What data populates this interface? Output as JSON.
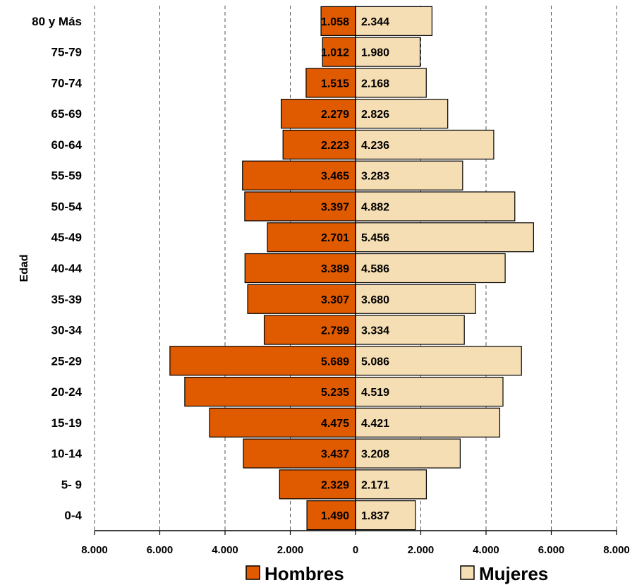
{
  "chart_data": {
    "type": "bar",
    "orientation": "horizontal-diverging",
    "ylabel": "Edad",
    "categories": [
      "80 y Más",
      "75-79",
      "70-74",
      "65-69",
      "60-64",
      "55-59",
      "50-54",
      "45-49",
      "40-44",
      "35-39",
      "30-34",
      "25-29",
      "20-24",
      "15-19",
      "10-14",
      "5- 9",
      "0-4"
    ],
    "series": [
      {
        "name": "Hombres",
        "color": "#E05A00",
        "values": [
          1058,
          1012,
          1515,
          2279,
          2223,
          3465,
          3397,
          2701,
          3389,
          3307,
          2799,
          5689,
          5235,
          4475,
          3437,
          2329,
          1490
        ],
        "value_labels": [
          "1.058",
          "1.012",
          "1.515",
          "2.279",
          "2.223",
          "3.465",
          "3.397",
          "2.701",
          "3.389",
          "3.307",
          "2.799",
          "5.689",
          "5.235",
          "4.475",
          "3.437",
          "2.329",
          "1.490"
        ]
      },
      {
        "name": "Mujeres",
        "color": "#F5DEB3",
        "values": [
          2344,
          1980,
          2168,
          2826,
          4236,
          3283,
          4882,
          5456,
          4586,
          3680,
          3334,
          5086,
          4519,
          4421,
          3208,
          2171,
          1837
        ],
        "value_labels": [
          "2.344",
          "1.980",
          "2.168",
          "2.826",
          "4.236",
          "3.283",
          "4.882",
          "5.456",
          "4.586",
          "3.680",
          "3.334",
          "5.086",
          "4.519",
          "4.421",
          "3.208",
          "2.171",
          "1.837"
        ]
      }
    ],
    "xlim": [
      -8000,
      8000
    ],
    "x_ticks": [
      -8000,
      -6000,
      -4000,
      -2000,
      0,
      2000,
      4000,
      6000,
      8000
    ],
    "x_tick_labels": [
      "8.000",
      "6.000",
      "4.000",
      "2.000",
      "0",
      "2.000",
      "4.000",
      "6.000",
      "8.000"
    ],
    "grid": "vertical-dashed",
    "legend": "bottom"
  }
}
